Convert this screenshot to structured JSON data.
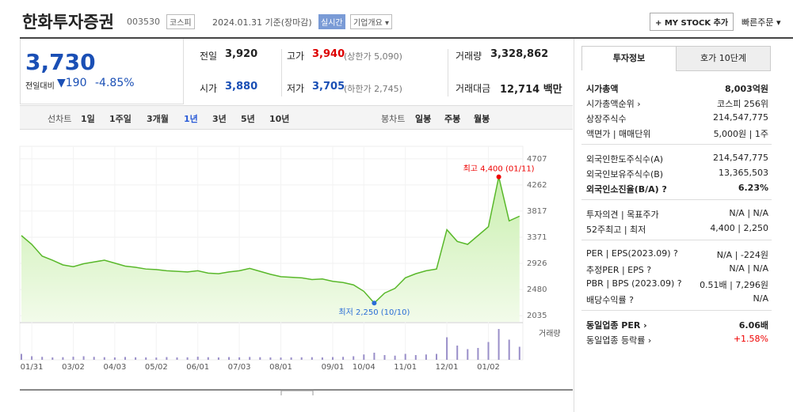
{
  "header": {
    "name": "한화투자증권",
    "code": "003530",
    "market": "코스피",
    "date": "2024.01.31 기준(장마감)",
    "realtime": "실시간",
    "company": "기업개요 ▾",
    "mystock": "+ MY STOCK 추가",
    "quick_order": "빠른주문 ▾"
  },
  "quote": {
    "price": "3,730",
    "change_label": "전일대비",
    "change": "▼190",
    "change_rate": "-4.85%",
    "items": [
      [
        "전일",
        "3,920",
        ""
      ],
      [
        "고가",
        "3,940",
        "(상한가 5,090)"
      ],
      [
        "거래량",
        "3,328,862",
        ""
      ],
      [
        "시가",
        "3,880",
        ""
      ],
      [
        "저가",
        "3,705",
        "(하한가 2,745)"
      ],
      [
        "거래대금",
        "12,714 백만",
        ""
      ]
    ]
  },
  "periods": {
    "line_label": "선차트",
    "line": [
      "1일",
      "1주일",
      "3개월",
      "1년",
      "3년",
      "5년",
      "10년"
    ],
    "candle_label": "봉차트",
    "candle": [
      "일봉",
      "주봉",
      "월봉"
    ]
  },
  "chart_data": {
    "type": "line",
    "color": "#59b82a",
    "categories": [
      null,
      "01/31",
      null,
      null,
      null,
      "03/02",
      null,
      null,
      null,
      "04/03",
      null,
      null,
      null,
      "05/02",
      null,
      null,
      null,
      "06/01",
      null,
      null,
      null,
      "07/03",
      null,
      null,
      null,
      "08/01",
      null,
      null,
      null,
      null,
      "09/01",
      null,
      null,
      "10/04",
      null,
      null,
      null,
      "11/01",
      null,
      null,
      null,
      "12/01",
      null,
      null,
      null,
      "01/02",
      null,
      null,
      null
    ],
    "values": [
      3400,
      3250,
      3050,
      2980,
      2900,
      2870,
      2920,
      2950,
      2980,
      2930,
      2880,
      2860,
      2830,
      2820,
      2800,
      2790,
      2780,
      2800,
      2760,
      2750,
      2780,
      2800,
      2840,
      2790,
      2740,
      2700,
      2690,
      2680,
      2650,
      2660,
      2620,
      2600,
      2560,
      2450,
      2250,
      2420,
      2500,
      2680,
      2750,
      2800,
      2830,
      3500,
      3300,
      3250,
      3400,
      3550,
      4400,
      3650,
      3730
    ],
    "ylim": [
      1930,
      4880
    ],
    "yticks": [
      2035,
      2480,
      2926,
      3371,
      3817,
      4262,
      4707
    ],
    "max_label": "최고 4,400 (01/11)",
    "min_label": "최저 2,250 (10/10)",
    "volume_label": "거래량",
    "volume": [
      500000,
      300000,
      250000,
      200000,
      220000,
      260000,
      300000,
      250000,
      220000,
      200000,
      240000,
      210000,
      200000,
      190000,
      230000,
      200000,
      210000,
      260000,
      220000,
      200000,
      230000,
      210000,
      240000,
      220000,
      200000,
      190000,
      200000,
      210000,
      220000,
      200000,
      230000,
      250000,
      300000,
      450000,
      600000,
      400000,
      350000,
      500000,
      400000,
      450000,
      500000,
      1900000,
      1200000,
      900000,
      1000000,
      1500000,
      2600000,
      1700000,
      1100000
    ],
    "vlim": [
      0,
      3000000
    ]
  },
  "info": {
    "tabs": [
      "투자정보",
      "호가 10단계"
    ],
    "sections": [
      [
        [
          "시가총액",
          "8,003억원"
        ],
        [
          "시가총액순위 ›",
          "코스피 256위"
        ],
        [
          "상장주식수",
          "214,547,775"
        ],
        [
          "액면가 | 매매단위",
          "5,000원 | 1주"
        ]
      ],
      [
        [
          "외국인한도주식수(A)",
          "214,547,775"
        ],
        [
          "외국인보유주식수(B)",
          "13,365,503"
        ],
        [
          "외국인소진율(B/A) ?",
          "6.23%"
        ]
      ],
      [
        [
          "투자의견 | 목표주가",
          "N/A | N/A"
        ],
        [
          "52주최고 | 최저",
          "4,400 | 2,250"
        ]
      ],
      [
        [
          "PER | EPS(2023.09) ?",
          "N/A | -224원"
        ],
        [
          "추정PER | EPS ?",
          "N/A | N/A"
        ],
        [
          "PBR | BPS (2023.09) ?",
          "0.51배 | 7,296원"
        ],
        [
          "배당수익률 ?",
          "N/A"
        ]
      ],
      [
        [
          "동일업종 PER ›",
          "6.06배"
        ],
        [
          "동일업종 등락률 ›",
          "+1.58%"
        ]
      ]
    ]
  }
}
